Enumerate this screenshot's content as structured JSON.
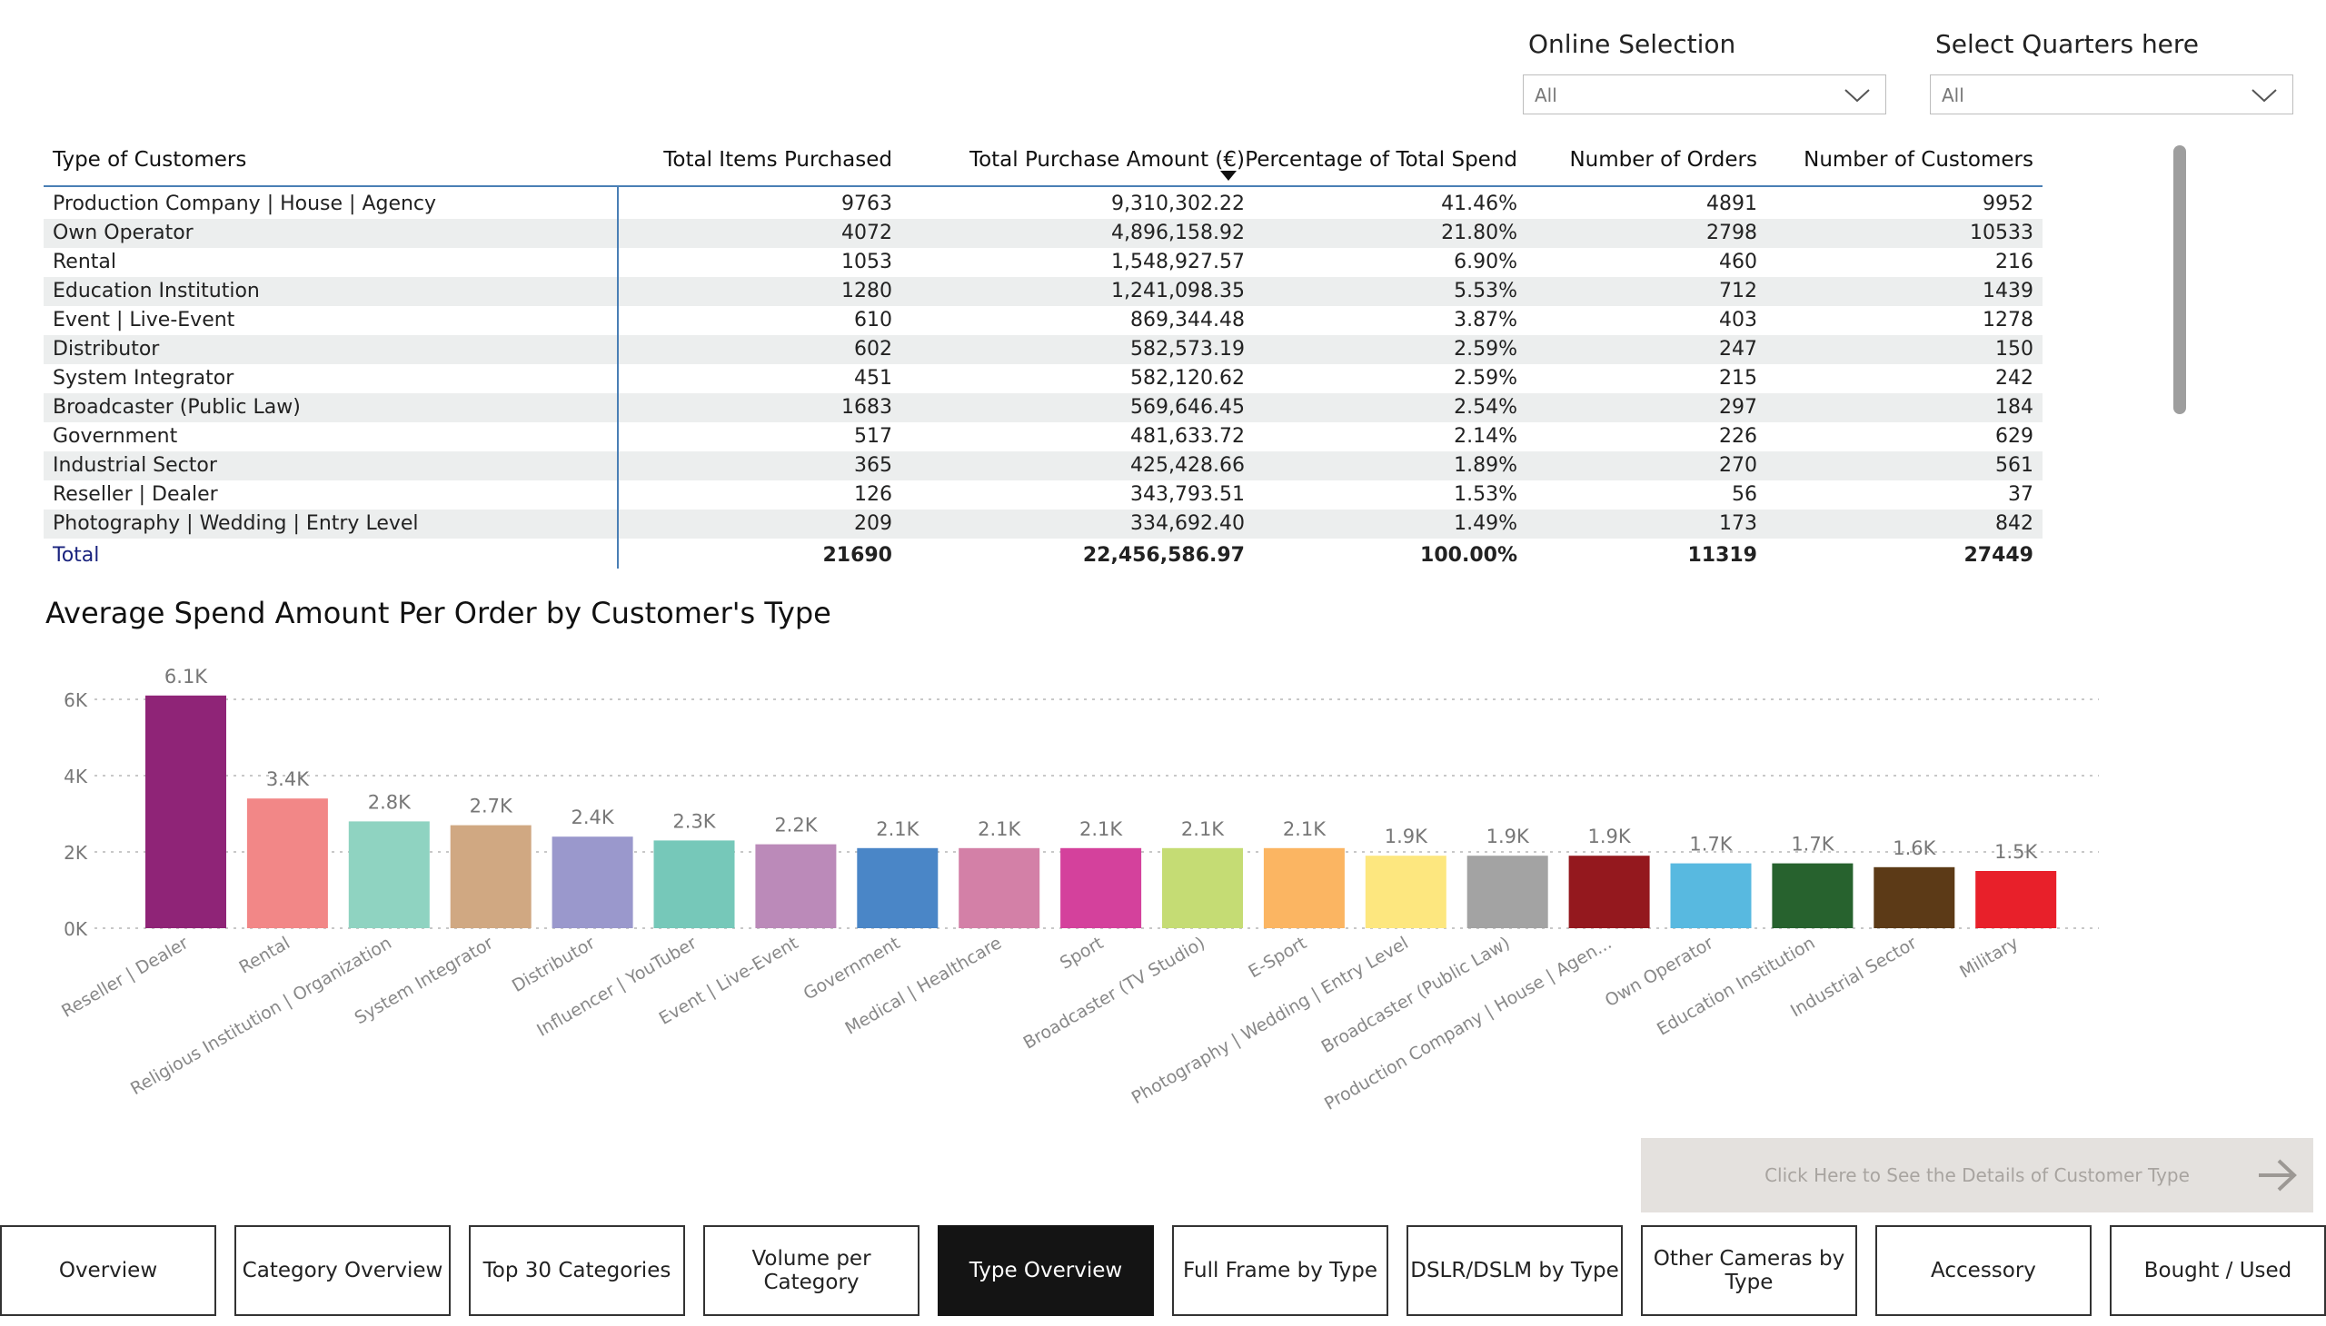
{
  "slicers": {
    "online": {
      "title": "Online Selection",
      "value": "All"
    },
    "quarters": {
      "title": "Select Quarters here",
      "value": "All"
    }
  },
  "table": {
    "headers": [
      "Type of Customers",
      "Total Items Purchased",
      "Total Purchase Amount (€)",
      "Percentage of Total Spend",
      "Number of Orders",
      "Number of Customers"
    ],
    "sorted_column": "Percentage of Total Spend",
    "rows": [
      [
        "Production Company | House | Agency",
        "9763",
        "9,310,302.22",
        "41.46%",
        "4891",
        "9952"
      ],
      [
        "Own Operator",
        "4072",
        "4,896,158.92",
        "21.80%",
        "2798",
        "10533"
      ],
      [
        "Rental",
        "1053",
        "1,548,927.57",
        "6.90%",
        "460",
        "216"
      ],
      [
        "Education Institution",
        "1280",
        "1,241,098.35",
        "5.53%",
        "712",
        "1439"
      ],
      [
        "Event | Live-Event",
        "610",
        "869,344.48",
        "3.87%",
        "403",
        "1278"
      ],
      [
        "Distributor",
        "602",
        "582,573.19",
        "2.59%",
        "247",
        "150"
      ],
      [
        "System Integrator",
        "451",
        "582,120.62",
        "2.59%",
        "215",
        "242"
      ],
      [
        "Broadcaster (Public Law)",
        "1683",
        "569,646.45",
        "2.54%",
        "297",
        "184"
      ],
      [
        "Government",
        "517",
        "481,633.72",
        "2.14%",
        "226",
        "629"
      ],
      [
        "Industrial Sector",
        "365",
        "425,428.66",
        "1.89%",
        "270",
        "561"
      ],
      [
        "Reseller | Dealer",
        "126",
        "343,793.51",
        "1.53%",
        "56",
        "37"
      ],
      [
        "Photography | Wedding | Entry Level",
        "209",
        "334,692.40",
        "1.49%",
        "173",
        "842"
      ]
    ],
    "total": [
      "Total",
      "21690",
      "22,456,586.97",
      "100.00%",
      "11319",
      "27449"
    ]
  },
  "chart_title": "Average Spend Amount Per Order by Customer's Type",
  "chart_data": {
    "type": "bar",
    "title": "Average Spend Amount Per Order by Customer's Type",
    "xlabel": "",
    "ylabel": "",
    "ylim": [
      0,
      6500
    ],
    "yticks": [
      0,
      2000,
      4000,
      6000
    ],
    "ytick_labels": [
      "0K",
      "2K",
      "4K",
      "6K"
    ],
    "grid": true,
    "categories": [
      "Reseller | Dealer",
      "Rental",
      "Religious Institution | Organization",
      "System Integrator",
      "Distributor",
      "Influencer | YouTuber",
      "Event | Live-Event",
      "Government",
      "Medical | Healthcare",
      "Sport",
      "Broadcaster (TV Studio)",
      "E-Sport",
      "Photography | Wedding | Entry Level",
      "Broadcaster (Public Law)",
      "Production Company | House | Agen...",
      "Own Operator",
      "Education Institution",
      "Industrial Sector",
      "Military"
    ],
    "values": [
      6100,
      3400,
      2800,
      2700,
      2400,
      2300,
      2200,
      2100,
      2100,
      2100,
      2100,
      2100,
      1900,
      1900,
      1900,
      1700,
      1700,
      1600,
      1500
    ],
    "data_labels": [
      "6.1K",
      "3.4K",
      "2.8K",
      "2.7K",
      "2.4K",
      "2.3K",
      "2.2K",
      "2.1K",
      "2.1K",
      "2.1K",
      "2.1K",
      "2.1K",
      "1.9K",
      "1.9K",
      "1.9K",
      "1.7K",
      "1.7K",
      "1.6K",
      "1.5K"
    ],
    "colors": [
      "#8f2477",
      "#f28787",
      "#8fd3c1",
      "#d0a882",
      "#9a98cc",
      "#76c8b9",
      "#bb8ab9",
      "#4a86c7",
      "#d380a7",
      "#d4419c",
      "#c5dc74",
      "#fbb562",
      "#fde77f",
      "#a3a3a3",
      "#94181e",
      "#58b9e0",
      "#27622e",
      "#5c3a17",
      "#e8202a"
    ]
  },
  "detail_button": {
    "label": "Click Here to See the Details of Customer Type"
  },
  "nav": {
    "items": [
      "Overview",
      "Category Overview",
      "Top 30 Categories",
      "Volume per Category",
      "Type Overview",
      "Full Frame by Type",
      "DSLR/DSLM by Type",
      "Other Cameras by Type",
      "Accessory",
      "Bought / Used"
    ],
    "active": "Type Overview"
  }
}
